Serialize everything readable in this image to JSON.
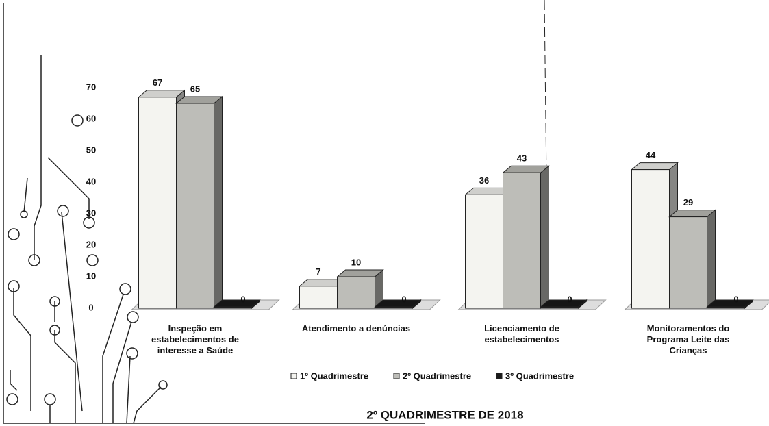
{
  "chart_data": {
    "type": "bar3d",
    "title": "2º QUADRIMESTRE DE 2018",
    "categories": [
      "Inspeção em estabelecimentos de interesse a Saúde",
      "Atendimento a denúncias",
      "Licenciamento de estabelecimentos",
      "Monitoramentos do Programa Leite das Crianças"
    ],
    "series": [
      {
        "name": "1º Quadrimestre",
        "color": "#f4f4f0",
        "values": [
          67,
          7,
          36,
          44
        ]
      },
      {
        "name": "2º Quadrimestre",
        "color": "#bdbdb8",
        "values": [
          65,
          10,
          43,
          29
        ]
      },
      {
        "name": "3º Quadrimestre",
        "color": "#1a1a1a",
        "values": [
          0,
          0,
          0,
          0
        ]
      }
    ],
    "ylim": [
      0,
      70
    ],
    "yticks": [
      0,
      10,
      20,
      30,
      40,
      50,
      60,
      70
    ]
  }
}
